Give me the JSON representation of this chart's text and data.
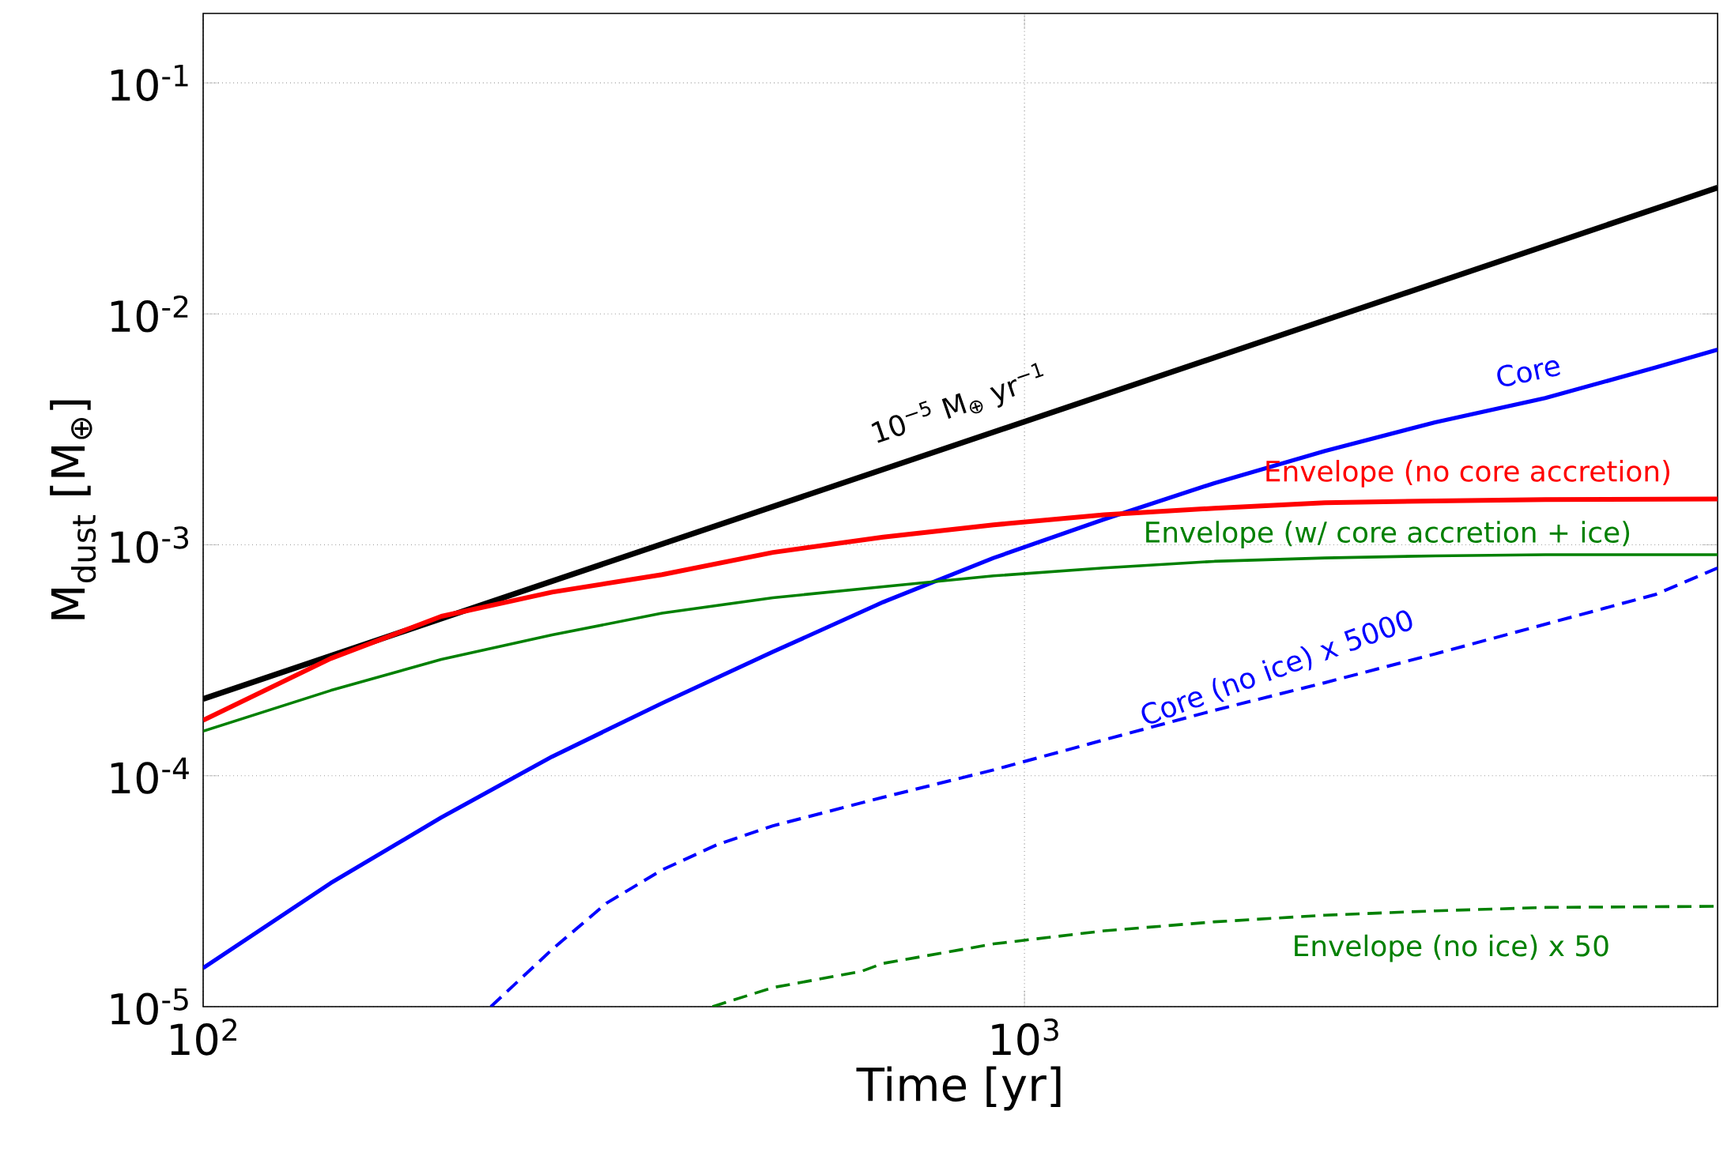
{
  "chart_data": {
    "type": "line",
    "xlabel": "Time [yr]",
    "ylabel": "M$_{dust}$ [M$_{⊕}$]",
    "log": "xy",
    "grid": true,
    "xlim": [
      100,
      6982
    ],
    "ylim": [
      1e-05,
      0.2
    ],
    "xticks": [
      {
        "value": 100,
        "label": "10$^{2}$"
      },
      {
        "value": 1000,
        "label": "10$^{3}$"
      }
    ],
    "yticks": [
      {
        "value": 1e-05,
        "label": "10$^{-5}$"
      },
      {
        "value": 0.0001,
        "label": "10$^{-4}$"
      },
      {
        "value": 0.001,
        "label": "10$^{-3}$"
      },
      {
        "value": 0.01,
        "label": "10$^{-2}$"
      },
      {
        "value": 0.1,
        "label": "10$^{-1}$"
      }
    ],
    "series": [
      {
        "name": "10$^{−5}$ M$_{⊕}$ yr$^{−1}$",
        "color": "#000000",
        "x": [
          100,
          6982
        ],
        "values": [
          0.000215,
          0.0352
        ]
      },
      {
        "name": "Core",
        "color": "#0000ff",
        "x": [
          100,
          143,
          195,
          266,
          362,
          494,
          673,
          917,
          1250,
          1703,
          2322,
          3162,
          4306,
          5870,
          6982
        ],
        "values": [
          1.47e-05,
          3.43e-05,
          6.6e-05,
          0.000121,
          0.000206,
          0.000344,
          0.000565,
          0.000877,
          0.00129,
          0.00185,
          0.00255,
          0.00339,
          0.00432,
          0.00586,
          0.007
        ]
      },
      {
        "name": "Envelope (no core accretion)",
        "color": "#ff0000",
        "x": [
          100,
          143,
          195,
          266,
          362,
          494,
          673,
          917,
          1250,
          1703,
          2322,
          3162,
          4306,
          6982
        ],
        "values": [
          0.000174,
          0.000322,
          0.00049,
          0.000624,
          0.000743,
          0.000927,
          0.00108,
          0.00122,
          0.00135,
          0.00144,
          0.00152,
          0.00155,
          0.00157,
          0.00158
        ]
      },
      {
        "name": "Envelope (w/ core accretion + ice)",
        "color": "#008000",
        "x": [
          100,
          143,
          195,
          266,
          362,
          494,
          673,
          917,
          1250,
          1703,
          2322,
          3162,
          4306,
          6982
        ],
        "values": [
          0.000156,
          0.000234,
          0.000319,
          0.000407,
          0.000506,
          0.00059,
          0.000659,
          0.000734,
          0.000794,
          0.000848,
          0.000877,
          0.000896,
          0.000906,
          0.000906
        ]
      },
      {
        "name": "Core (no ice) x 5000",
        "color": "#0000ff",
        "line_style": "dashed",
        "x": [
          224,
          266,
          310,
          362,
          423,
          494,
          673,
          917,
          1250,
          1703,
          2322,
          3162,
          4306,
          5870,
          6982
        ],
        "values": [
          1e-05,
          1.77e-05,
          2.81e-05,
          3.91e-05,
          5.04e-05,
          6.07e-05,
          8.07e-05,
          0.000106,
          0.000143,
          0.000192,
          0.000253,
          0.000337,
          0.000453,
          0.00061,
          0.000794
        ]
      },
      {
        "name": "Envelope (no ice) x 50",
        "color": "#008000",
        "line_style": "dashed",
        "x": [
          417,
          494,
          632,
          673,
          917,
          1250,
          1703,
          2322,
          3162,
          4306,
          6982
        ],
        "values": [
          1e-05,
          1.21e-05,
          1.42e-05,
          1.54e-05,
          1.87e-05,
          2.13e-05,
          2.33e-05,
          2.49e-05,
          2.6e-05,
          2.69e-05,
          2.72e-05
        ]
      }
    ]
  }
}
